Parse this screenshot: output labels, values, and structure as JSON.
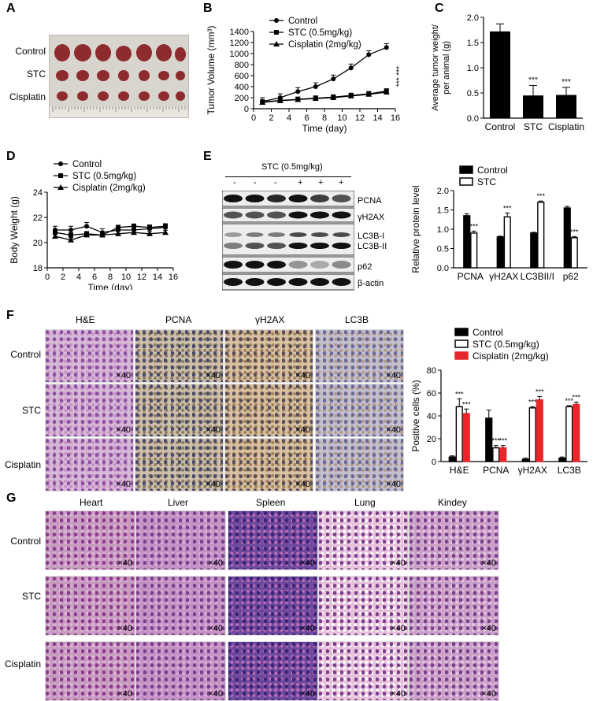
{
  "panels": {
    "A": "A",
    "B": "B",
    "C": "C",
    "D": "D",
    "E": "E",
    "F": "F",
    "G": "G"
  },
  "groups": [
    "Control",
    "STC",
    "Cisplatin"
  ],
  "magnification": "×40",
  "panelA": {
    "rows": [
      "Control",
      "STC",
      "Cisplatin"
    ],
    "ruler_label": "ruler"
  },
  "panelB": {
    "chart_data": {
      "type": "line",
      "xlabel": "Time (day)",
      "ylabel": "Tumor Volume (mm³)",
      "xlim": [
        0,
        16
      ],
      "ylim": [
        0,
        1400
      ],
      "xticks": [
        0,
        2,
        4,
        6,
        8,
        10,
        12,
        14,
        16
      ],
      "yticks": [
        0,
        200,
        400,
        600,
        800,
        1000,
        1200,
        1400
      ],
      "series": [
        {
          "name": "Control",
          "x": [
            1,
            3,
            5,
            7,
            9,
            11,
            13,
            15
          ],
          "values": [
            130,
            200,
            310,
            400,
            540,
            740,
            980,
            1110
          ]
        },
        {
          "name": "STC (0.5mg/kg)",
          "x": [
            1,
            3,
            5,
            7,
            9,
            11,
            13,
            15
          ],
          "values": [
            120,
            150,
            170,
            190,
            210,
            240,
            270,
            320
          ]
        },
        {
          "name": "Cisplatin (2mg/kg)",
          "x": [
            1,
            3,
            5,
            7,
            9,
            11,
            13,
            15
          ],
          "values": [
            115,
            145,
            165,
            185,
            200,
            230,
            260,
            300
          ]
        }
      ],
      "annotation": "*** ***"
    }
  },
  "panelC": {
    "chart_data": {
      "type": "bar",
      "ylabel": "Average tumor weight/ per animal (g)",
      "categories": [
        "Control",
        "STC",
        "Cisplatin"
      ],
      "values": [
        1.72,
        0.45,
        0.46
      ],
      "errors": [
        0.15,
        0.2,
        0.15
      ],
      "ylim": [
        0,
        2.0
      ],
      "yticks": [
        "0.0",
        "0.5",
        "1.0",
        "1.5",
        "2.0"
      ],
      "annotations": [
        "",
        "***",
        "***"
      ]
    }
  },
  "panelD": {
    "chart_data": {
      "type": "line",
      "xlabel": "Time (day)",
      "ylabel": "Body Weight (g)",
      "xlim": [
        0,
        16
      ],
      "ylim": [
        18,
        24
      ],
      "xticks": [
        0,
        2,
        4,
        6,
        8,
        10,
        12,
        14,
        16
      ],
      "yticks": [
        18,
        20,
        22,
        24
      ],
      "series": [
        {
          "name": "Control",
          "x": [
            1,
            3,
            5,
            7,
            9,
            11,
            13,
            15
          ],
          "values": [
            21.0,
            21.0,
            21.3,
            20.8,
            21.0,
            21.0,
            21.1,
            21.2
          ]
        },
        {
          "name": "STC (0.5mg/kg)",
          "x": [
            1,
            3,
            5,
            7,
            9,
            11,
            13,
            15
          ],
          "values": [
            20.8,
            20.6,
            20.7,
            20.6,
            21.2,
            21.3,
            21.2,
            21.3
          ]
        },
        {
          "name": "Cisplatin (2mg/kg)",
          "x": [
            1,
            3,
            5,
            7,
            9,
            11,
            13,
            15
          ],
          "values": [
            20.5,
            20.2,
            20.6,
            20.6,
            20.7,
            20.8,
            20.7,
            20.8
          ]
        }
      ]
    }
  },
  "panelE": {
    "header": "STC (0.5mg/kg)",
    "lanes": [
      "-",
      "-",
      "-",
      "+",
      "+",
      "+"
    ],
    "blots": [
      "PCNA",
      "γH2AX",
      "LC3B-I",
      "LC3B-II",
      "p62",
      "β-actin"
    ],
    "chart_data": {
      "type": "bar",
      "ylabel": "Relative protein level",
      "categories": [
        "PCNA",
        "γH2AX",
        "LC3BII/I",
        "p62"
      ],
      "series": [
        {
          "name": "Control",
          "values": [
            1.35,
            0.8,
            0.9,
            1.55
          ],
          "errors": [
            0.05,
            0.02,
            0.02,
            0.04
          ]
        },
        {
          "name": "STC",
          "values": [
            0.9,
            1.32,
            1.7,
            0.78
          ],
          "errors": [
            0.05,
            0.1,
            0.03,
            0.03
          ]
        }
      ],
      "ylim": [
        0,
        2.0
      ],
      "yticks": [
        "0.0",
        "0.5",
        "1.0",
        "1.5",
        "2.0"
      ],
      "annotation": "***"
    }
  },
  "panelF": {
    "columns": [
      "H&E",
      "PCNA",
      "γH2AX",
      "LC3B"
    ],
    "chart_data": {
      "type": "bar",
      "ylabel": "Positive cells (%)",
      "categories": [
        "H&E",
        "PCNA",
        "γH2AX",
        "LC3B"
      ],
      "series": [
        {
          "name": "Control",
          "values": [
            4,
            38,
            2,
            3
          ],
          "errors": [
            1,
            7,
            1,
            1
          ]
        },
        {
          "name": "STC (0.5mg/kg)",
          "values": [
            48,
            12,
            47,
            48
          ],
          "errors": [
            7,
            2,
            1,
            1
          ]
        },
        {
          "name": "Cisplatin (2mg/kg)",
          "values": [
            42,
            12,
            54,
            50
          ],
          "errors": [
            4,
            2,
            3,
            2
          ]
        }
      ],
      "ylim": [
        0,
        80
      ],
      "yticks": [
        0,
        20,
        40,
        60,
        80
      ],
      "colors": [
        "#000000",
        "#ffffff",
        "#e8262a"
      ],
      "annotation": "***"
    }
  },
  "panelG": {
    "columns": [
      "Heart",
      "Liver",
      "Spleen",
      "Lung",
      "Kindey"
    ]
  }
}
